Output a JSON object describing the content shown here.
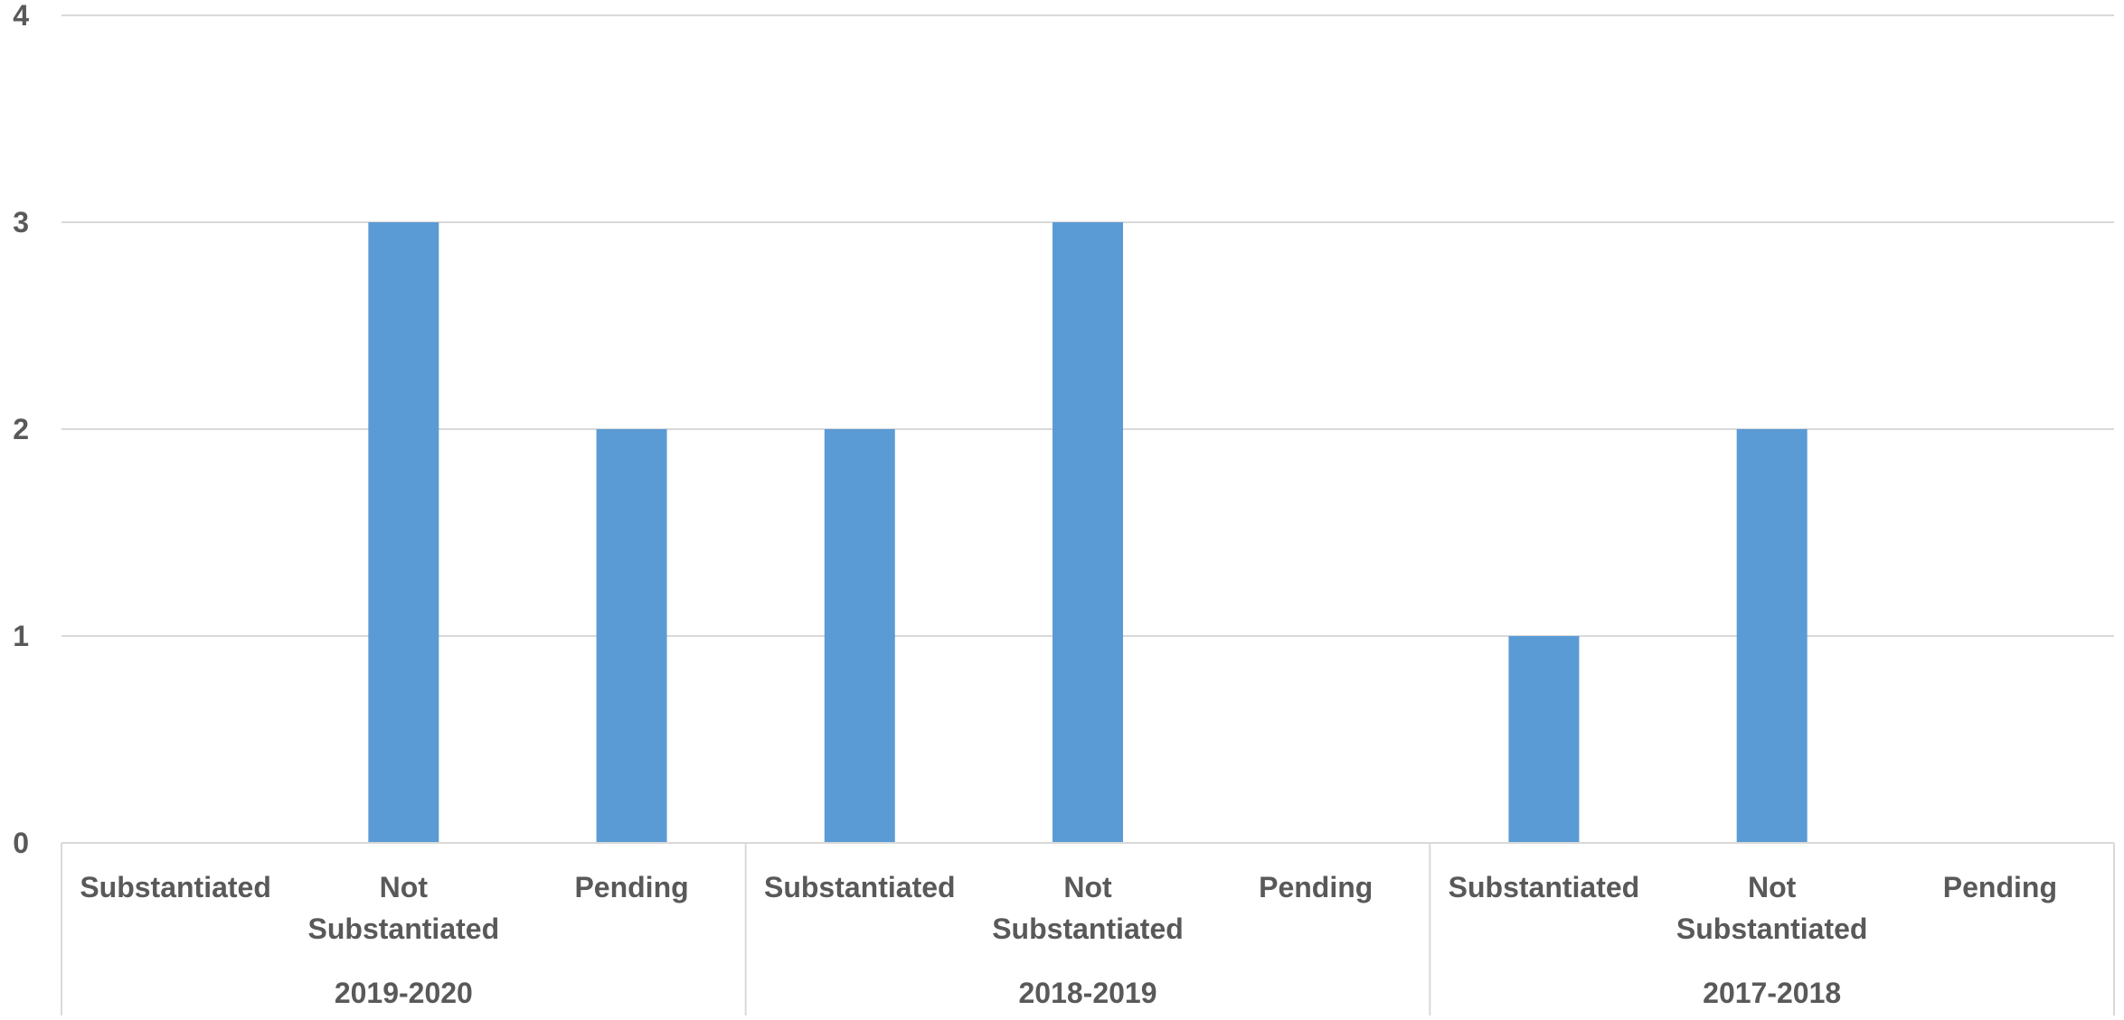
{
  "chart_data": {
    "type": "bar",
    "groups": [
      {
        "label": "2019-2020",
        "categories": [
          "Substantiated",
          "Not Substantiated",
          "Pending"
        ],
        "values": [
          0,
          3,
          2
        ]
      },
      {
        "label": "2018-2019",
        "categories": [
          "Substantiated",
          "Not Substantiated",
          "Pending"
        ],
        "values": [
          2,
          3,
          0
        ]
      },
      {
        "label": "2017-2018",
        "categories": [
          "Substantiated",
          "Not Substantiated",
          "Pending"
        ],
        "values": [
          1,
          2,
          0
        ]
      }
    ],
    "y_ticks": [
      "0",
      "1",
      "2",
      "3",
      "4"
    ],
    "ylim": [
      0,
      4
    ],
    "grid": true,
    "legend": "none",
    "title": "",
    "xlabel": "",
    "ylabel": ""
  },
  "colors": {
    "bar": "#5B9BD5",
    "grid": "#D9D9D9",
    "text": "#595959"
  }
}
